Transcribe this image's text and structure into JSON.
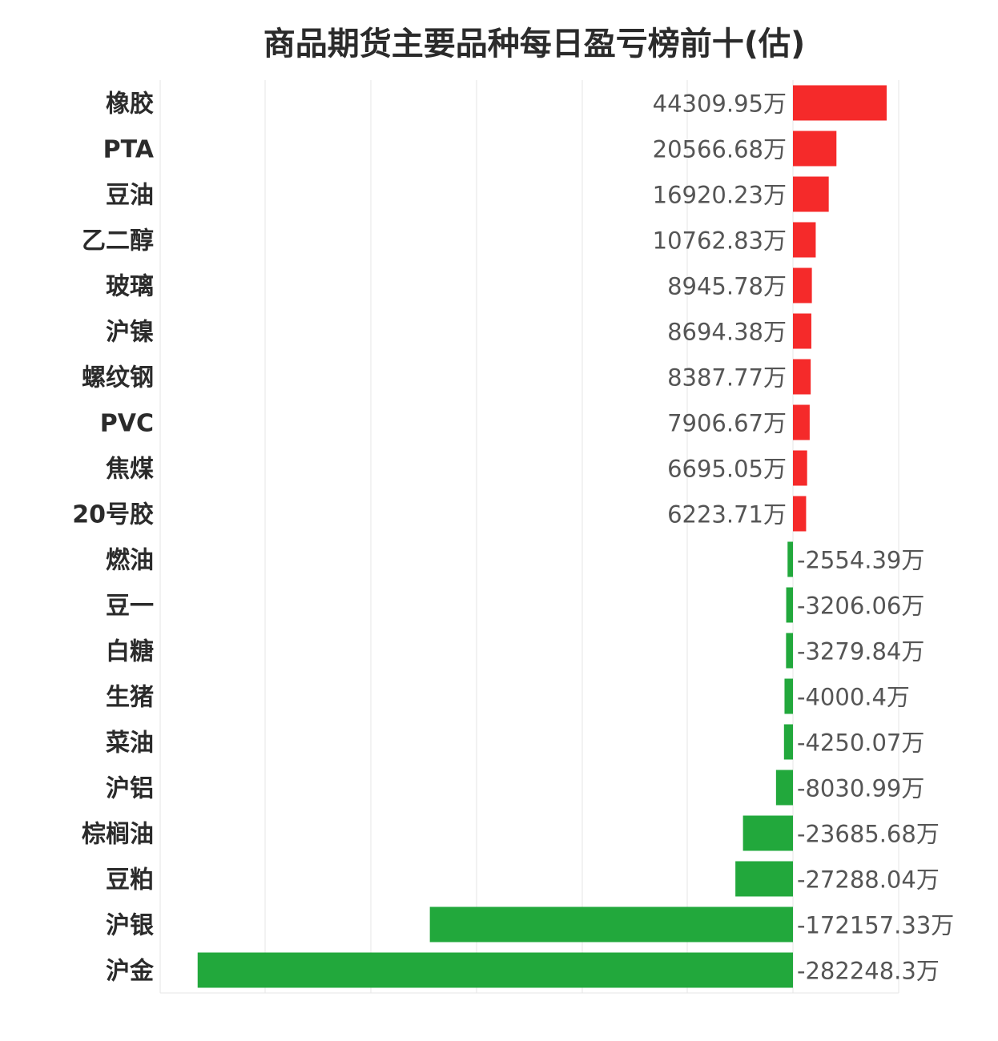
{
  "chart_data": {
    "type": "bar",
    "orientation": "horizontal",
    "title": "商品期货主要品种每日盈亏榜前十(估)",
    "unit": "万",
    "categories": [
      "橡胶",
      "PTA",
      "豆油",
      "乙二醇",
      "玻璃",
      "沪镍",
      "螺纹钢",
      "PVC",
      "焦煤",
      "20号胶",
      "燃油",
      "豆一",
      "白糖",
      "生猪",
      "菜油",
      "沪铝",
      "棕榈油",
      "豆粕",
      "沪银",
      "沪金"
    ],
    "values": [
      44309.95,
      20566.68,
      16920.23,
      10762.83,
      8945.78,
      8694.38,
      8387.77,
      7906.67,
      6695.05,
      6223.71,
      -2554.39,
      -3206.06,
      -3279.84,
      -4000.4,
      -4250.07,
      -8030.99,
      -23685.68,
      -27288.04,
      -172157.33,
      -282248.3
    ],
    "value_labels": [
      "44309.95万",
      "20566.68万",
      "16920.23万",
      "10762.83万",
      "8945.78万",
      "8694.38万",
      "8387.77万",
      "7906.67万",
      "6695.05万",
      "6223.71万",
      "-2554.39万",
      "-3206.06万",
      "-3279.84万",
      "-4000.4万",
      "-4250.07万",
      "-8030.99万",
      "-23685.68万",
      "-27288.04万",
      "-172157.33万",
      "-282248.3万"
    ],
    "xlim": [
      -300000,
      50000
    ],
    "grid": true,
    "colors": {
      "positive": "#f52a2a",
      "negative": "#22a83c",
      "grid": "#e6e6e6"
    }
  }
}
